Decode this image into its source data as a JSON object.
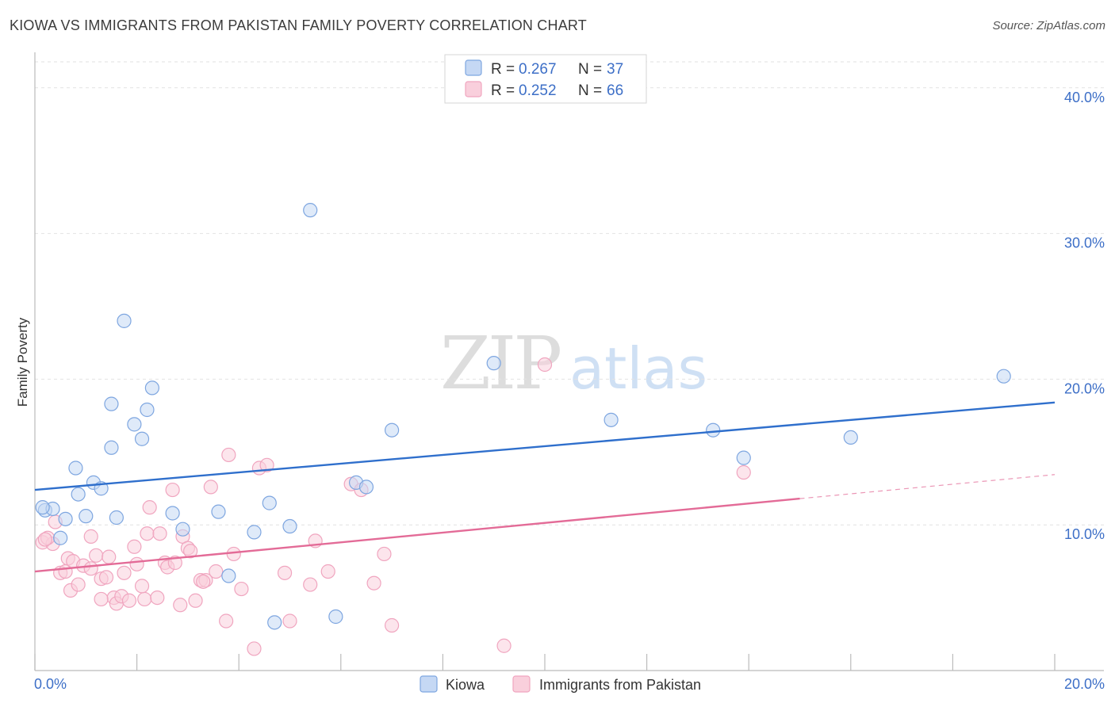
{
  "header": {
    "title": "KIOWA VS IMMIGRANTS FROM PAKISTAN FAMILY POVERTY CORRELATION CHART",
    "source": "Source: ZipAtlas.com"
  },
  "watermark": {
    "zip": "ZIP",
    "atlas": "atlas"
  },
  "chart_data": {
    "type": "scatter",
    "title": "KIOWA VS IMMIGRANTS FROM PAKISTAN FAMILY POVERTY CORRELATION CHART",
    "ylabel": "Family Poverty",
    "xlabel": "",
    "xlim": [
      0,
      20
    ],
    "ylim": [
      0,
      42
    ],
    "x_tick_labels": [
      "0.0%",
      "20.0%"
    ],
    "y_ticks": [
      10,
      20,
      30,
      40
    ],
    "y_tick_labels": [
      "10.0%",
      "20.0%",
      "30.0%",
      "40.0%"
    ],
    "grid": true,
    "legend_top": [
      {
        "r_label": "R = ",
        "r_value": "0.267",
        "n_label": "N = ",
        "n_value": "37"
      },
      {
        "r_label": "R = ",
        "r_value": "0.252",
        "n_label": "N = ",
        "n_value": "66"
      }
    ],
    "series": [
      {
        "name": "Kiowa",
        "color": "#7ea6e0",
        "fill": "#c5d8f4",
        "trend_color": "#2f6fcc",
        "trend": {
          "x0": 0,
          "y0": 12.4,
          "x1": 20,
          "y1": 18.4
        },
        "points": [
          [
            5.4,
            31.6
          ],
          [
            1.75,
            24.0
          ],
          [
            1.5,
            18.3
          ],
          [
            2.3,
            19.4
          ],
          [
            2.2,
            17.9
          ],
          [
            1.95,
            16.9
          ],
          [
            2.1,
            15.9
          ],
          [
            1.5,
            15.3
          ],
          [
            0.8,
            13.9
          ],
          [
            1.15,
            12.9
          ],
          [
            1.3,
            12.5
          ],
          [
            0.85,
            12.1
          ],
          [
            0.2,
            11.0
          ],
          [
            0.35,
            11.1
          ],
          [
            0.6,
            10.4
          ],
          [
            1.0,
            10.6
          ],
          [
            1.6,
            10.5
          ],
          [
            2.7,
            10.8
          ],
          [
            3.6,
            10.9
          ],
          [
            4.6,
            11.5
          ],
          [
            0.5,
            9.1
          ],
          [
            2.9,
            9.7
          ],
          [
            4.3,
            9.5
          ],
          [
            5.0,
            9.9
          ],
          [
            3.8,
            6.5
          ],
          [
            4.7,
            3.3
          ],
          [
            5.9,
            3.7
          ],
          [
            6.3,
            12.9
          ],
          [
            6.5,
            12.6
          ],
          [
            7.0,
            16.5
          ],
          [
            9.0,
            21.1
          ],
          [
            11.3,
            17.2
          ],
          [
            13.3,
            16.5
          ],
          [
            13.9,
            14.6
          ],
          [
            16.0,
            16.0
          ],
          [
            19.0,
            20.2
          ],
          [
            0.15,
            11.2
          ]
        ]
      },
      {
        "name": "Immigrants from Pakistan",
        "color": "#f0a5bf",
        "fill": "#f9cfdc",
        "trend_color": "#e36b97",
        "trend": {
          "x0": 0,
          "y0": 6.8,
          "x1": 15.0,
          "y1": 11.8
        },
        "trend_dashed": {
          "x0": 15.0,
          "y0": 11.8,
          "x1": 20,
          "y1": 13.45
        },
        "points": [
          [
            0.15,
            8.8
          ],
          [
            0.35,
            8.7
          ],
          [
            0.4,
            10.2
          ],
          [
            0.25,
            9.1
          ],
          [
            0.5,
            6.7
          ],
          [
            0.6,
            6.8
          ],
          [
            0.65,
            7.7
          ],
          [
            0.75,
            7.5
          ],
          [
            0.7,
            5.5
          ],
          [
            0.85,
            5.9
          ],
          [
            0.95,
            7.2
          ],
          [
            1.1,
            7.0
          ],
          [
            1.1,
            9.2
          ],
          [
            1.2,
            7.9
          ],
          [
            1.3,
            6.3
          ],
          [
            1.4,
            6.4
          ],
          [
            1.45,
            7.8
          ],
          [
            1.55,
            5.0
          ],
          [
            1.6,
            4.6
          ],
          [
            1.7,
            5.1
          ],
          [
            1.75,
            6.7
          ],
          [
            1.85,
            4.8
          ],
          [
            1.95,
            8.5
          ],
          [
            2.0,
            7.3
          ],
          [
            2.15,
            4.9
          ],
          [
            2.2,
            9.4
          ],
          [
            2.25,
            11.2
          ],
          [
            2.4,
            5.0
          ],
          [
            2.45,
            9.4
          ],
          [
            2.55,
            7.4
          ],
          [
            2.6,
            7.1
          ],
          [
            2.7,
            12.4
          ],
          [
            2.75,
            7.4
          ],
          [
            2.85,
            4.5
          ],
          [
            2.9,
            9.2
          ],
          [
            3.0,
            8.4
          ],
          [
            3.05,
            8.2
          ],
          [
            3.15,
            4.8
          ],
          [
            3.25,
            6.2
          ],
          [
            3.35,
            6.2
          ],
          [
            3.45,
            12.6
          ],
          [
            3.55,
            6.8
          ],
          [
            3.75,
            3.4
          ],
          [
            3.8,
            14.8
          ],
          [
            3.9,
            8.0
          ],
          [
            4.05,
            5.6
          ],
          [
            4.3,
            1.5
          ],
          [
            4.4,
            13.9
          ],
          [
            4.55,
            14.1
          ],
          [
            4.9,
            6.7
          ],
          [
            5.0,
            3.4
          ],
          [
            5.4,
            5.9
          ],
          [
            5.5,
            8.9
          ],
          [
            5.75,
            6.8
          ],
          [
            6.2,
            12.8
          ],
          [
            6.4,
            12.4
          ],
          [
            6.65,
            6.0
          ],
          [
            6.85,
            8.0
          ],
          [
            7.0,
            3.1
          ],
          [
            9.2,
            1.7
          ],
          [
            10.0,
            21.0
          ],
          [
            13.9,
            13.6
          ],
          [
            3.3,
            6.1
          ],
          [
            2.1,
            5.8
          ],
          [
            1.3,
            4.9
          ],
          [
            0.2,
            9.0
          ]
        ]
      }
    ]
  },
  "legend_bottom": {
    "items": [
      {
        "label": "Kiowa"
      },
      {
        "label": "Immigrants from Pakistan"
      }
    ]
  }
}
